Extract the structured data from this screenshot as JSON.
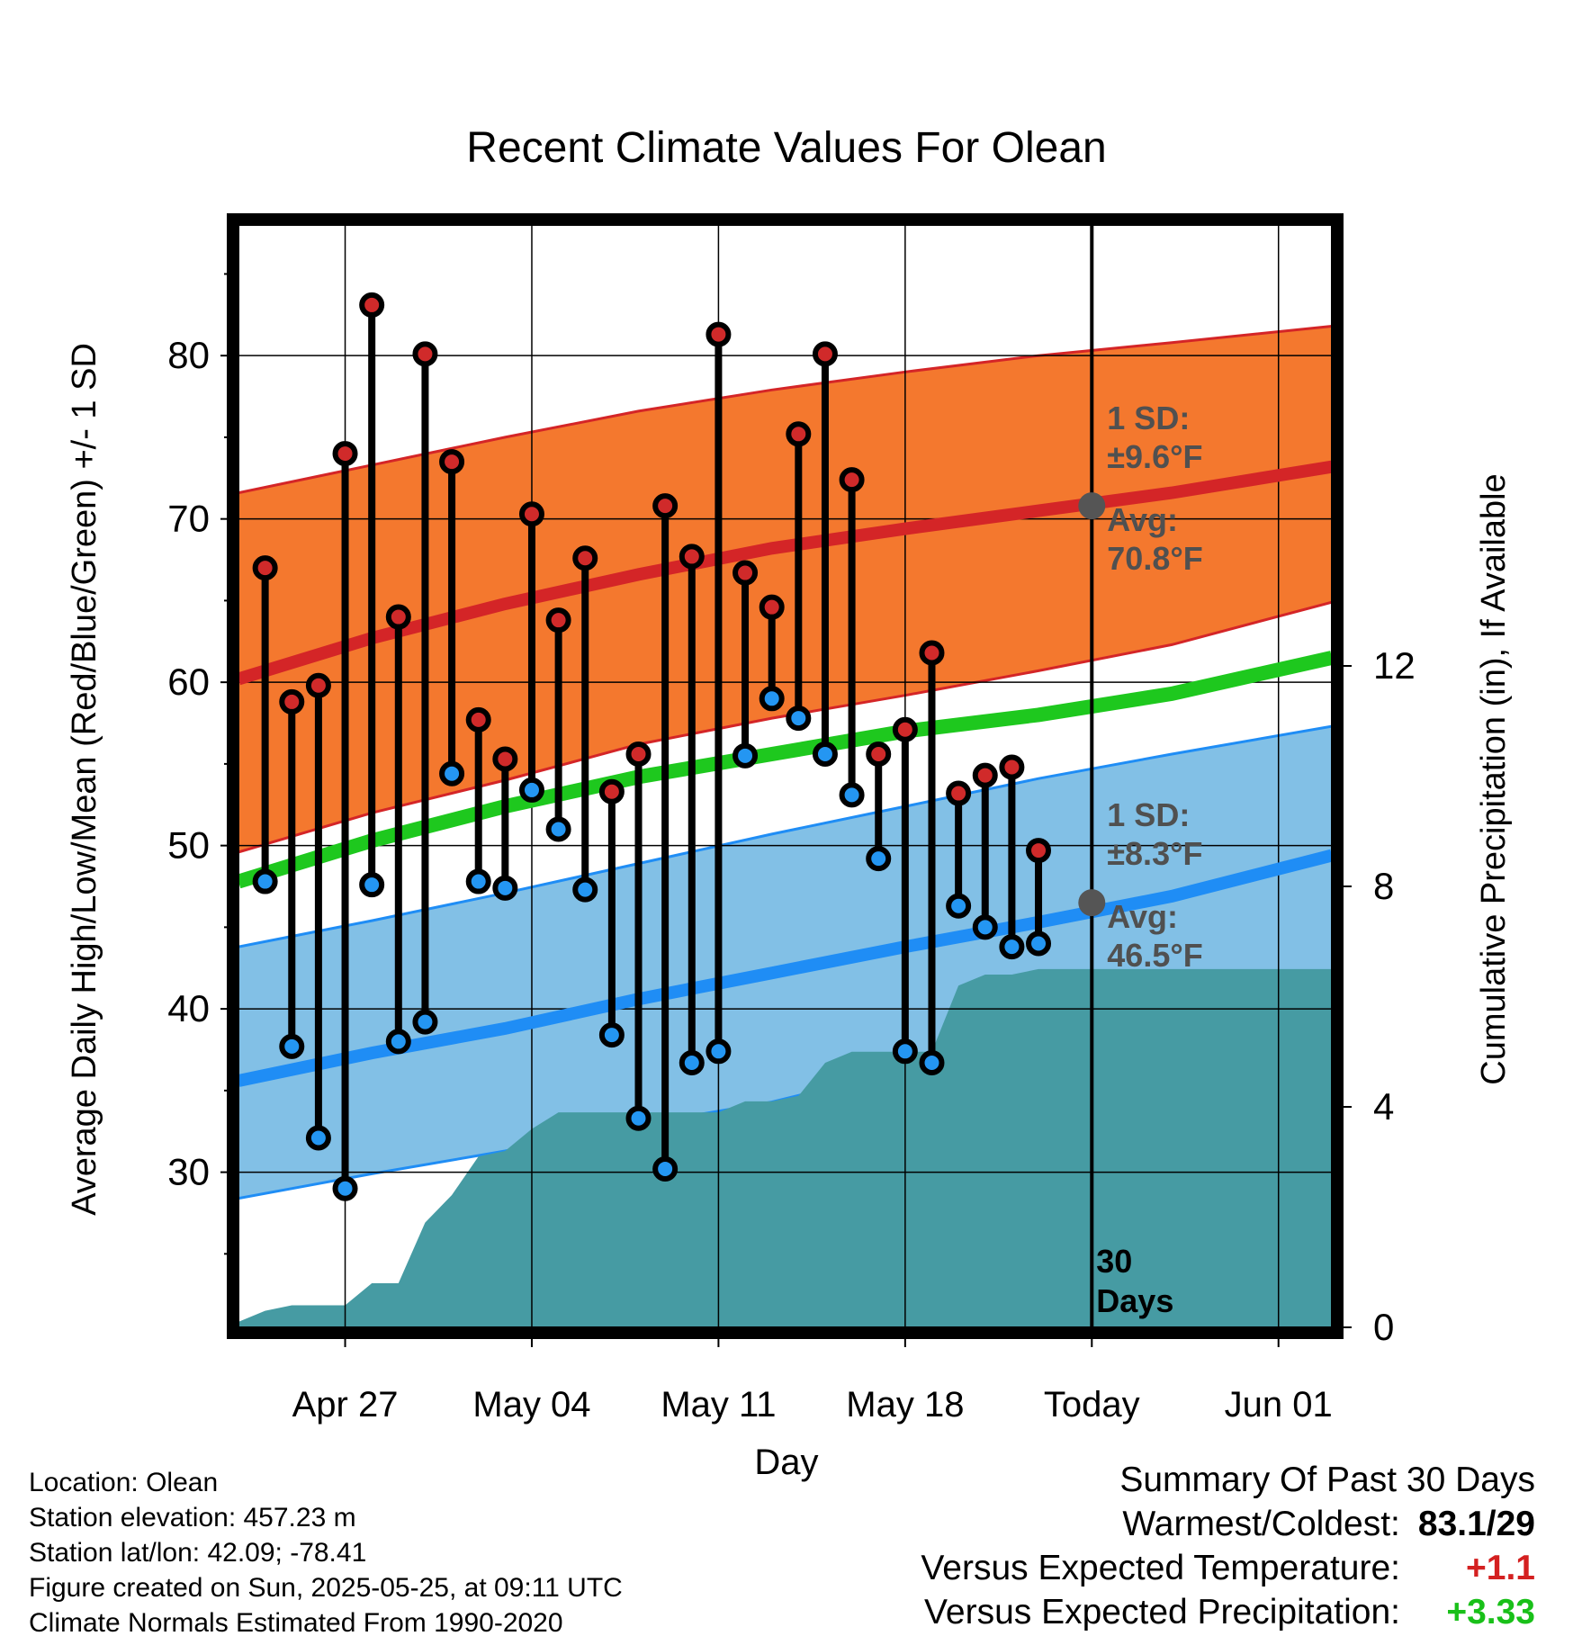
{
  "chart_data": {
    "type": "line",
    "title": "Recent Climate Values For Olean",
    "xlabel": "Day",
    "ylabel": "Average Daily High/Low/Mean (Red/Blue/Green) +/- 1 SD",
    "y2label": "Cumulative Precipitation (in), If Available",
    "xlim": [
      "2025-04-23",
      "2025-06-03"
    ],
    "ylim": [
      20.5,
      88
    ],
    "y2lim": [
      0,
      20.0
    ],
    "yticks": [
      30,
      40,
      50,
      60,
      70,
      80
    ],
    "y2ticks": [
      0,
      4,
      8,
      12
    ],
    "xticks": [
      {
        "date": "2025-04-27",
        "label": "Apr 27"
      },
      {
        "date": "2025-05-04",
        "label": "May 04"
      },
      {
        "date": "2025-05-11",
        "label": "May 11"
      },
      {
        "date": "2025-05-18",
        "label": "May 18"
      },
      {
        "date": "2025-05-25",
        "label": "Today"
      },
      {
        "date": "2025-06-01",
        "label": "Jun 01"
      }
    ],
    "grid": true,
    "today": "2025-05-25",
    "today_label": "30 Days",
    "normals": {
      "dates": [
        "2025-04-23",
        "2025-04-28",
        "2025-05-03",
        "2025-05-08",
        "2025-05-13",
        "2025-05-18",
        "2025-05-23",
        "2025-05-28",
        "2025-06-03"
      ],
      "high_mean": [
        60.2,
        62.7,
        64.8,
        66.6,
        68.2,
        69.4,
        70.5,
        71.6,
        73.2
      ],
      "high_upper": [
        71.6,
        73.3,
        75.0,
        76.6,
        77.9,
        79.0,
        80.0,
        80.8,
        81.8
      ],
      "high_lower": [
        49.6,
        52.0,
        54.0,
        56.2,
        57.8,
        59.2,
        60.7,
        62.3,
        64.9
      ],
      "mean": [
        47.8,
        50.3,
        52.4,
        54.2,
        55.6,
        57.0,
        58.0,
        59.3,
        61.5
      ],
      "low_mean": [
        35.6,
        37.3,
        38.8,
        40.6,
        42.2,
        43.8,
        45.3,
        46.9,
        49.4
      ],
      "low_upper": [
        43.8,
        45.4,
        47.1,
        48.9,
        50.7,
        52.4,
        54.1,
        55.6,
        57.3
      ],
      "low_lower": [
        28.4,
        29.9,
        31.3,
        32.9,
        34.3,
        36.3,
        37.7,
        39.4,
        42.1
      ]
    },
    "annotations": {
      "high_sd": "1 SD:",
      "high_sd_value": "±9.6°F",
      "high_avg": "Avg:",
      "high_avg_value": "70.8°F",
      "high_avg_num": 70.8,
      "low_sd": "1 SD:",
      "low_sd_value": "±8.3°F",
      "low_avg": "Avg:",
      "low_avg_value": "46.5°F",
      "low_avg_num": 46.5
    },
    "daily": {
      "dates": [
        "2025-04-24",
        "2025-04-25",
        "2025-04-26",
        "2025-04-27",
        "2025-04-28",
        "2025-04-29",
        "2025-04-30",
        "2025-05-01",
        "2025-05-02",
        "2025-05-03",
        "2025-05-04",
        "2025-05-05",
        "2025-05-06",
        "2025-05-07",
        "2025-05-08",
        "2025-05-09",
        "2025-05-10",
        "2025-05-11",
        "2025-05-12",
        "2025-05-13",
        "2025-05-14",
        "2025-05-15",
        "2025-05-16",
        "2025-05-17",
        "2025-05-18",
        "2025-05-19",
        "2025-05-20",
        "2025-05-21",
        "2025-05-22",
        "2025-05-23",
        "2025-05-24"
      ],
      "high": [
        67.0,
        58.8,
        59.8,
        74.0,
        83.1,
        64.0,
        80.1,
        73.5,
        57.7,
        55.3,
        70.3,
        63.8,
        67.6,
        53.3,
        55.6,
        70.8,
        67.7,
        81.3,
        66.7,
        64.6,
        75.2,
        80.1,
        72.4,
        55.6,
        57.1,
        61.8,
        53.2,
        54.3,
        54.8,
        49.7,
        null
      ],
      "low": [
        47.8,
        37.7,
        32.1,
        29.0,
        47.6,
        38.0,
        39.2,
        54.4,
        47.8,
        47.4,
        53.4,
        51.0,
        47.3,
        38.4,
        33.3,
        30.2,
        36.7,
        37.4,
        55.5,
        59.0,
        57.8,
        55.6,
        53.1,
        49.2,
        37.4,
        36.7,
        46.3,
        45.0,
        43.8,
        44.0,
        null
      ]
    },
    "precip": {
      "dates": [
        "2025-04-23",
        "2025-04-24",
        "2025-04-25",
        "2025-04-26",
        "2025-04-27",
        "2025-04-28",
        "2025-04-29",
        "2025-04-30",
        "2025-05-01",
        "2025-05-02",
        "2025-05-03",
        "2025-05-04",
        "2025-05-05",
        "2025-05-06",
        "2025-05-07",
        "2025-05-08",
        "2025-05-09",
        "2025-05-10",
        "2025-05-11",
        "2025-05-12",
        "2025-05-13",
        "2025-05-14",
        "2025-05-15",
        "2025-05-16",
        "2025-05-17",
        "2025-05-18",
        "2025-05-19",
        "2025-05-20",
        "2025-05-21",
        "2025-05-22",
        "2025-05-23",
        "2025-05-24",
        "2025-05-25",
        "2025-06-03"
      ],
      "values": [
        0.1,
        0.3,
        0.4,
        0.4,
        0.4,
        0.8,
        0.8,
        1.9,
        2.4,
        3.1,
        3.2,
        3.6,
        3.9,
        3.9,
        3.9,
        3.9,
        3.9,
        3.9,
        3.9,
        4.1,
        4.1,
        4.2,
        4.8,
        5.0,
        5.0,
        5.0,
        5.0,
        6.2,
        6.4,
        6.4,
        6.5,
        6.5,
        6.5,
        6.5
      ]
    },
    "colors": {
      "high_band": "#f4782e",
      "high_line": "#d42527",
      "low_band": "#82c0e6",
      "low_line": "#1f8df5",
      "mean_line": "#1ec81e",
      "precip": "#469ba3",
      "high_dot": "#d02a2a",
      "low_dot": "#2496f2",
      "annotation": "#505050",
      "avg_marker": "#555555"
    }
  },
  "info": {
    "location": "Location: Olean",
    "elevation": "Station elevation: 457.23 m",
    "latlon": "Station lat/lon: 42.09; -78.41",
    "created": "Figure created on Sun, 2025-05-25, at 09:11 UTC",
    "normals": "Climate Normals Estimated From 1990-2020"
  },
  "summary": {
    "title": "Summary Of Past 30 Days",
    "warm_cold_label": "Warmest/Coldest:",
    "warm_cold_value": "83.1/29",
    "temp_label": "Versus Expected Temperature:",
    "temp_value": "+1.1",
    "temp_color": "#d42020",
    "precip_label": "Versus Expected Precipitation:",
    "precip_value": "+3.33",
    "precip_color": "#19c019"
  }
}
